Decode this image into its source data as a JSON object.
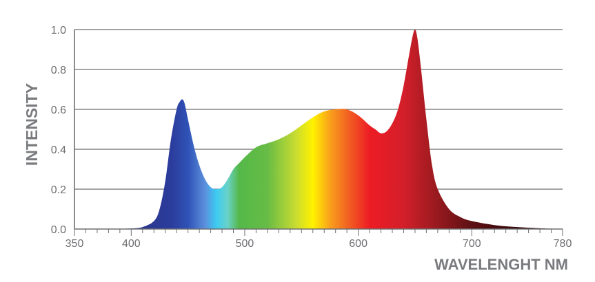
{
  "chart_data": {
    "type": "area",
    "title": "",
    "xlabel": "WAVELENGHT NM",
    "ylabel": "INTENSITY",
    "xlim": [
      350,
      780
    ],
    "ylim": [
      0,
      1.0
    ],
    "x_ticks": [
      350,
      400,
      500,
      600,
      700,
      780
    ],
    "y_ticks": [
      0.0,
      0.2,
      0.4,
      0.6,
      0.8,
      1.0
    ],
    "x_tick_labels": [
      "350",
      "400",
      "500",
      "600",
      "700",
      "780"
    ],
    "y_tick_labels": [
      "0.0",
      "0.2",
      "0.4",
      "0.6",
      "0.8",
      "1.0"
    ],
    "grid": "horizontal",
    "fill": "visible-spectrum-gradient",
    "series": [
      {
        "x": [
          380,
          400,
          410,
          420,
          425,
          430,
          435,
          440,
          443,
          445,
          447,
          450,
          455,
          460,
          465,
          470,
          475,
          480,
          485,
          490,
          495,
          500,
          510,
          520,
          530,
          540,
          550,
          560,
          570,
          580,
          590,
          600,
          610,
          615,
          620,
          625,
          630,
          635,
          640,
          645,
          648,
          650,
          652,
          655,
          660,
          665,
          670,
          680,
          690,
          700,
          720,
          740,
          760,
          780
        ],
        "y": [
          0.0,
          0.003,
          0.01,
          0.04,
          0.1,
          0.24,
          0.45,
          0.6,
          0.64,
          0.65,
          0.63,
          0.55,
          0.42,
          0.32,
          0.25,
          0.21,
          0.2,
          0.21,
          0.25,
          0.3,
          0.33,
          0.36,
          0.41,
          0.43,
          0.45,
          0.48,
          0.52,
          0.56,
          0.59,
          0.6,
          0.6,
          0.57,
          0.52,
          0.5,
          0.48,
          0.49,
          0.53,
          0.6,
          0.72,
          0.88,
          0.97,
          1.0,
          0.96,
          0.82,
          0.55,
          0.32,
          0.2,
          0.1,
          0.06,
          0.04,
          0.02,
          0.01,
          0.004,
          0.0
        ]
      }
    ],
    "colors": {
      "axis": "#6d6e71",
      "grid": "#6d6e71",
      "labels": "#7a7b7e",
      "spectrum": [
        {
          "at": 380,
          "color": "#2a2f7a"
        },
        {
          "at": 435,
          "color": "#2b3c9c"
        },
        {
          "at": 450,
          "color": "#2f52b6"
        },
        {
          "at": 465,
          "color": "#5c8fdc"
        },
        {
          "at": 475,
          "color": "#3ccbf2"
        },
        {
          "at": 485,
          "color": "#6ad2c8"
        },
        {
          "at": 495,
          "color": "#54b848"
        },
        {
          "at": 520,
          "color": "#67bc46"
        },
        {
          "at": 545,
          "color": "#c9dc31"
        },
        {
          "at": 560,
          "color": "#fff200"
        },
        {
          "at": 575,
          "color": "#f9a11b"
        },
        {
          "at": 590,
          "color": "#f26522"
        },
        {
          "at": 610,
          "color": "#ed1c24"
        },
        {
          "at": 640,
          "color": "#d31f2a"
        },
        {
          "at": 665,
          "color": "#a01b20"
        },
        {
          "at": 700,
          "color": "#5d1014"
        },
        {
          "at": 740,
          "color": "#35090b"
        },
        {
          "at": 780,
          "color": "#2b0a0a"
        }
      ]
    }
  }
}
